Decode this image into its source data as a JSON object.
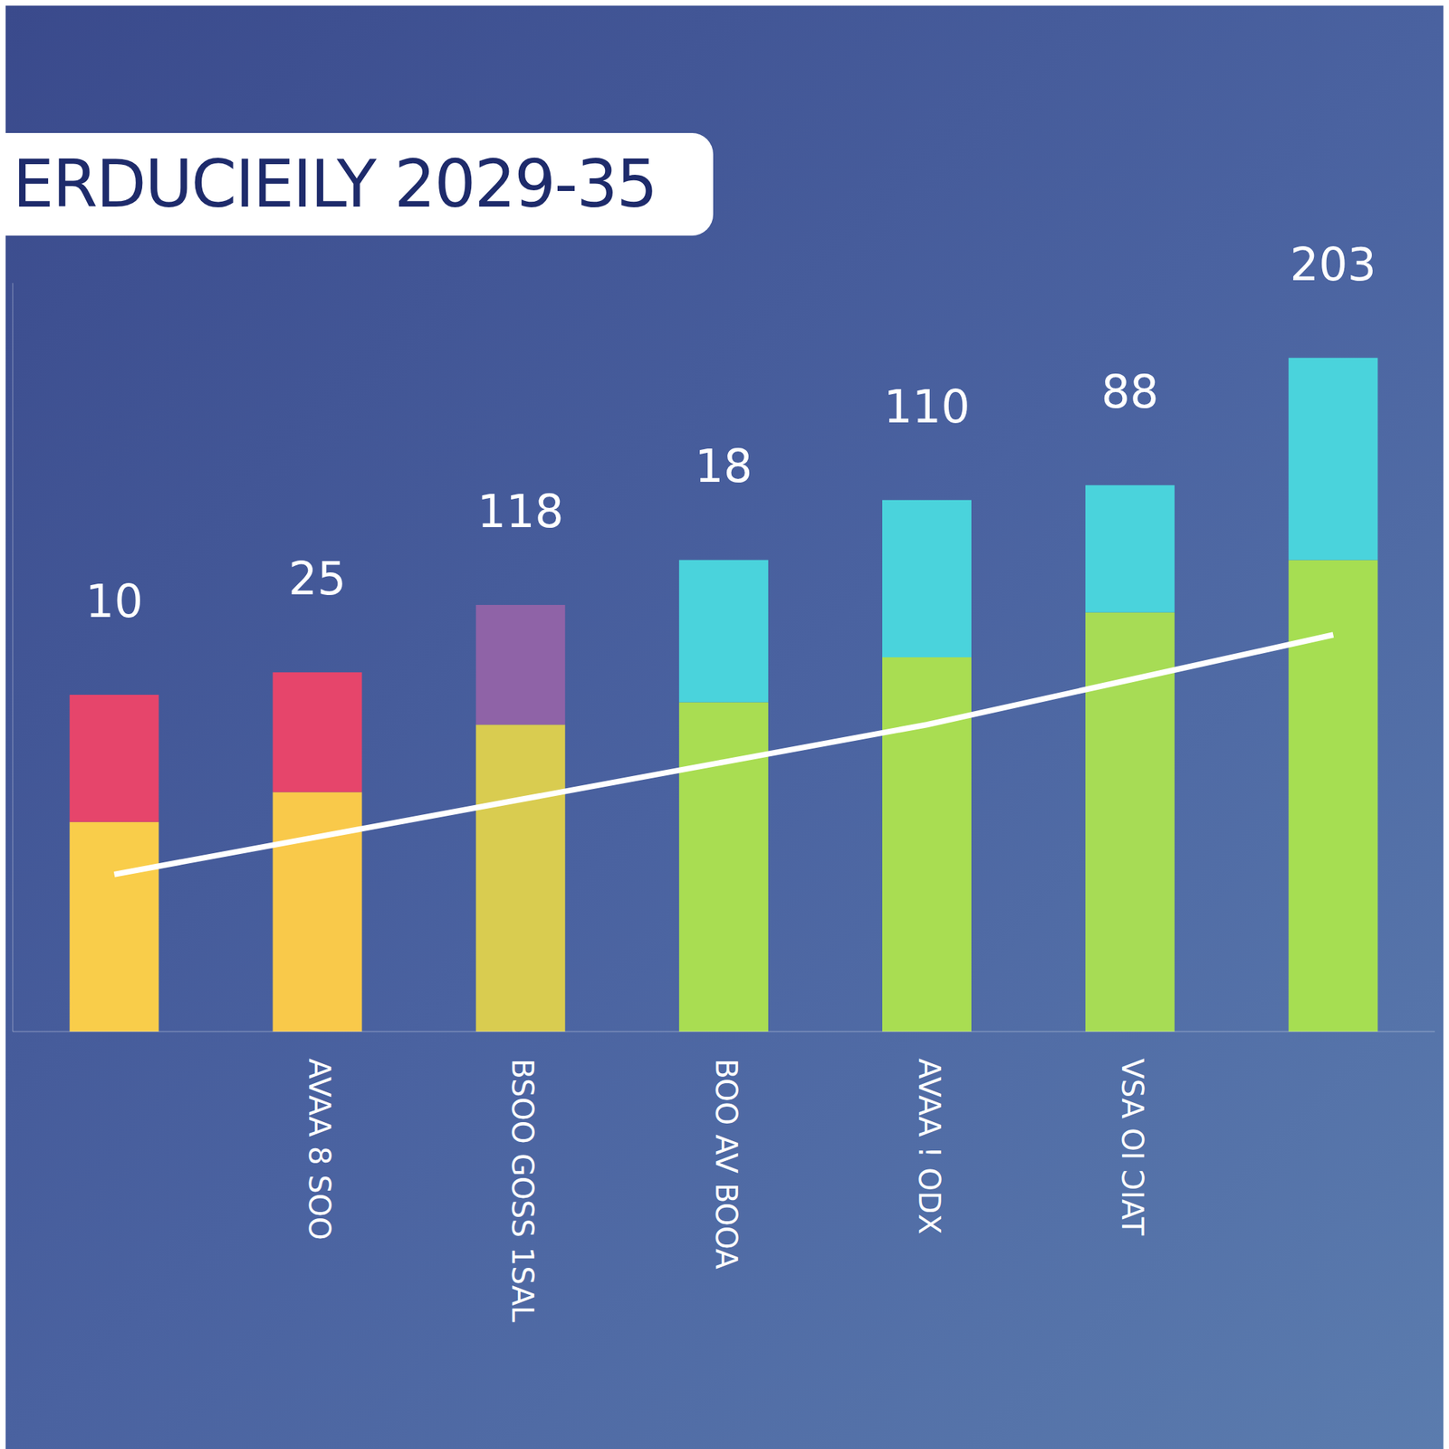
{
  "chart_data": {
    "type": "bar",
    "title": "ERDUCIEILY 2029-35",
    "categories": [
      null,
      "AVAA 8 SOO",
      "BSOO GOSS 1SAL",
      "BOO AV BOOA",
      "AVAA ! ODX",
      "VSA OI ƆIAT",
      null
    ],
    "series": [
      {
        "colors": [
          "#f9cd4a",
          "#f9c94a",
          "#d9cc50",
          "#a9dd52",
          "#a9dd52",
          "#a7dc55",
          "#a6de52"
        ],
        "values": [
          28,
          32,
          41,
          44,
          50,
          56,
          63
        ]
      },
      {
        "colors": [
          "#e6456b",
          "#e6456b",
          "#8f63a7",
          "#4ad3dc",
          "#4ad3dc",
          "#4ad3dc",
          "#4ad3dc"
        ],
        "values": [
          17,
          16,
          16,
          19,
          21,
          17,
          27
        ]
      },
      {
        "type": "line",
        "color": "#ffffff",
        "values": [
          21,
          26,
          31,
          36,
          41,
          47,
          53
        ]
      }
    ],
    "stacked": true,
    "annotations": [
      "10",
      "25",
      "118",
      "18",
      "110",
      "88",
      "203"
    ],
    "ylim": [
      0,
      100
    ],
    "yticks": [
      0,
      100
    ],
    "tick_labels": "x"
  }
}
